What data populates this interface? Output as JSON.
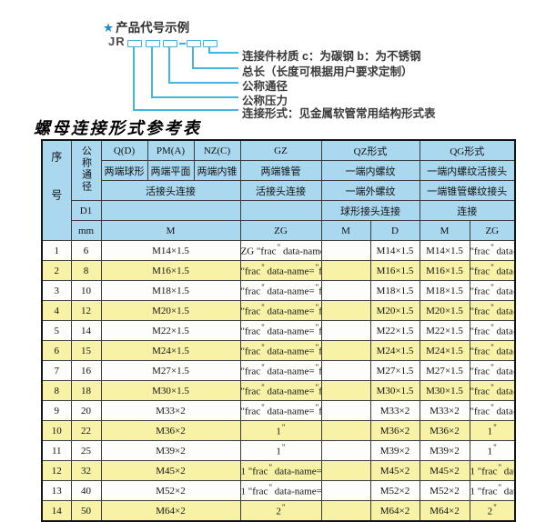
{
  "diagram": {
    "star": "★",
    "title": "产品代号示例",
    "code_prefix": "JR",
    "labels": [
      "连接件材质  c：为碳钢  b：为不锈钢",
      "总长（长度可根据用户要求定制）",
      "公称通径",
      "公称压力",
      "连接形式：见金属软管常用结构形式表"
    ],
    "line_color": "#45b4e0"
  },
  "table": {
    "title": "螺母连接形式参考表",
    "header": {
      "seq": "序号",
      "dn": "公称通径",
      "d1": "D1",
      "mm": "mm",
      "q": "Q(D)",
      "pm": "PM(A)",
      "nz": "NZ(C)",
      "gz": "GZ",
      "qz": "QZ形式",
      "qg": "QG形式",
      "q_desc": "两端球形",
      "pm_desc": "两端平面",
      "nz_desc": "两端内锥",
      "gz_desc": "两端锥管",
      "qz_desc1": "一端内螺纹",
      "qg_desc1": "一端内螺纹活接头",
      "union_conn": "活接头连接",
      "gz_conn": "活接头连接",
      "qz_desc2": "一端外螺纹",
      "qg_desc2": "一端锥管螺纹接头",
      "qz_conn": "球形接头连接",
      "qg_conn": "连接",
      "m": "M",
      "zg": "ZG",
      "m2": "M",
      "d": "D",
      "m3": "M",
      "zg2": "ZG"
    },
    "rows": [
      {
        "seq": "1",
        "dn": "6",
        "m": "M14×1.5",
        "gz": "ZG 1/4\"",
        "qz_m": "",
        "qz_d": "M14×1.5",
        "qg_m": "M14×1.5",
        "qg_zg": "1/4\""
      },
      {
        "seq": "2",
        "dn": "8",
        "m": "M16×1.5",
        "gz": "3/8\"",
        "qz_m": "",
        "qz_d": "M16×1.5",
        "qg_m": "M16×1.5",
        "qg_zg": "3/8\""
      },
      {
        "seq": "3",
        "dn": "10",
        "m": "M18×1.5",
        "gz": "3/8\"",
        "qz_m": "",
        "qz_d": "M18×1.5",
        "qg_m": "M18×1.5",
        "qg_zg": "3/8\""
      },
      {
        "seq": "4",
        "dn": "12",
        "m": "M20×1.5",
        "gz": "1/2\"",
        "qz_m": "",
        "qz_d": "M20×1.5",
        "qg_m": "M20×1.5",
        "qg_zg": "1/2\""
      },
      {
        "seq": "5",
        "dn": "14",
        "m": "M22×1.5",
        "gz": "1/2\"",
        "qz_m": "",
        "qz_d": "M22×1.5",
        "qg_m": "M22×1.5",
        "qg_zg": "1/2\""
      },
      {
        "seq": "6",
        "dn": "15",
        "m": "M24×1.5",
        "gz": "1/2\"",
        "qz_m": "",
        "qz_d": "M24×1.5",
        "qg_m": "M24×1.5",
        "qg_zg": "1/2\""
      },
      {
        "seq": "7",
        "dn": "16",
        "m": "M27×1.5",
        "gz": "1/2\"",
        "qz_m": "",
        "qz_d": "M27×1.5",
        "qg_m": "M27×1.5",
        "qg_zg": "1/2\""
      },
      {
        "seq": "8",
        "dn": "18",
        "m": "M30×1.5",
        "gz": "3/4\"",
        "qz_m": "",
        "qz_d": "M30×1.5",
        "qg_m": "M30×1.5",
        "qg_zg": "3/4\""
      },
      {
        "seq": "9",
        "dn": "20",
        "m": "M33×2",
        "gz": "3/4\"",
        "qz_m": "",
        "qz_d": "M33×2",
        "qg_m": "M33×2",
        "qg_zg": "3/4\""
      },
      {
        "seq": "10",
        "dn": "22",
        "m": "M36×2",
        "gz": "1\"",
        "qz_m": "",
        "qz_d": "M36×2",
        "qg_m": "M36×2",
        "qg_zg": "1\""
      },
      {
        "seq": "11",
        "dn": "25",
        "m": "M39×2",
        "gz": "1\"",
        "qz_m": "",
        "qz_d": "M39×2",
        "qg_m": "M39×2",
        "qg_zg": "1\""
      },
      {
        "seq": "12",
        "dn": "32",
        "m": "M45×2",
        "gz": "1 1/4\"",
        "qz_m": "",
        "qz_d": "M45×2",
        "qg_m": "M45×2",
        "qg_zg": "1 1/4\""
      },
      {
        "seq": "13",
        "dn": "40",
        "m": "M52×2",
        "gz": "1 1/2\"",
        "qz_m": "",
        "qz_d": "M52×2",
        "qg_m": "M52×2",
        "qg_zg": "1 1/2\""
      },
      {
        "seq": "14",
        "dn": "50",
        "m": "M64×2",
        "gz": "2\"",
        "qz_m": "",
        "qz_d": "M64×2",
        "qg_m": "M64×2",
        "qg_zg": "2\""
      }
    ]
  },
  "colors": {
    "header_bg": "#a9d8ef",
    "row_alt_bg": "#f7f2a6",
    "accent": "#45b4e0"
  }
}
